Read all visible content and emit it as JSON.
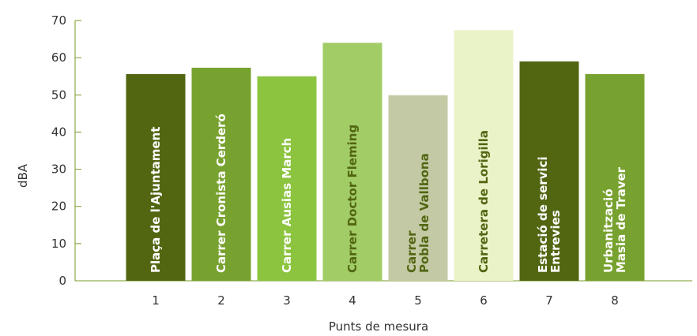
{
  "chart_data": {
    "type": "bar",
    "xlabel": "Punts de mesura",
    "ylabel": "dBA",
    "ylim": [
      0,
      70
    ],
    "yticks": [
      "0",
      "10",
      "20",
      "30",
      "40",
      "50",
      "60",
      "70"
    ],
    "categories": [
      "1",
      "2",
      "3",
      "4",
      "5",
      "6",
      "7",
      "8"
    ],
    "values": [
      55.6,
      57.3,
      55.0,
      64.0,
      49.9,
      67.4,
      59.0,
      55.6
    ],
    "bar_names": [
      [
        "Plaça de l'Ajuntament"
      ],
      [
        "Carrer Cronista Cerderó"
      ],
      [
        "Carrer Ausias March"
      ],
      [
        "Carrer Doctor Fleming"
      ],
      [
        "Carrer",
        "Pobla de Vallbona"
      ],
      [
        "Carretera de Lorigilla"
      ],
      [
        "Estació de servici",
        "Entrevies"
      ],
      [
        "Urbanització",
        "Masia de Traver"
      ]
    ],
    "bar_colors": [
      "#526612",
      "#78a22f",
      "#8cc43f",
      "#a1cc66",
      "#c3c9a4",
      "#eaf3c8",
      "#526612",
      "#78a22f"
    ],
    "label_colors": [
      "#ffffff",
      "#ffffff",
      "#ffffff",
      "#526612",
      "#526612",
      "#526612",
      "#ffffff",
      "#ffffff"
    ],
    "axis_color": "#7a9a2a",
    "grid": false
  }
}
